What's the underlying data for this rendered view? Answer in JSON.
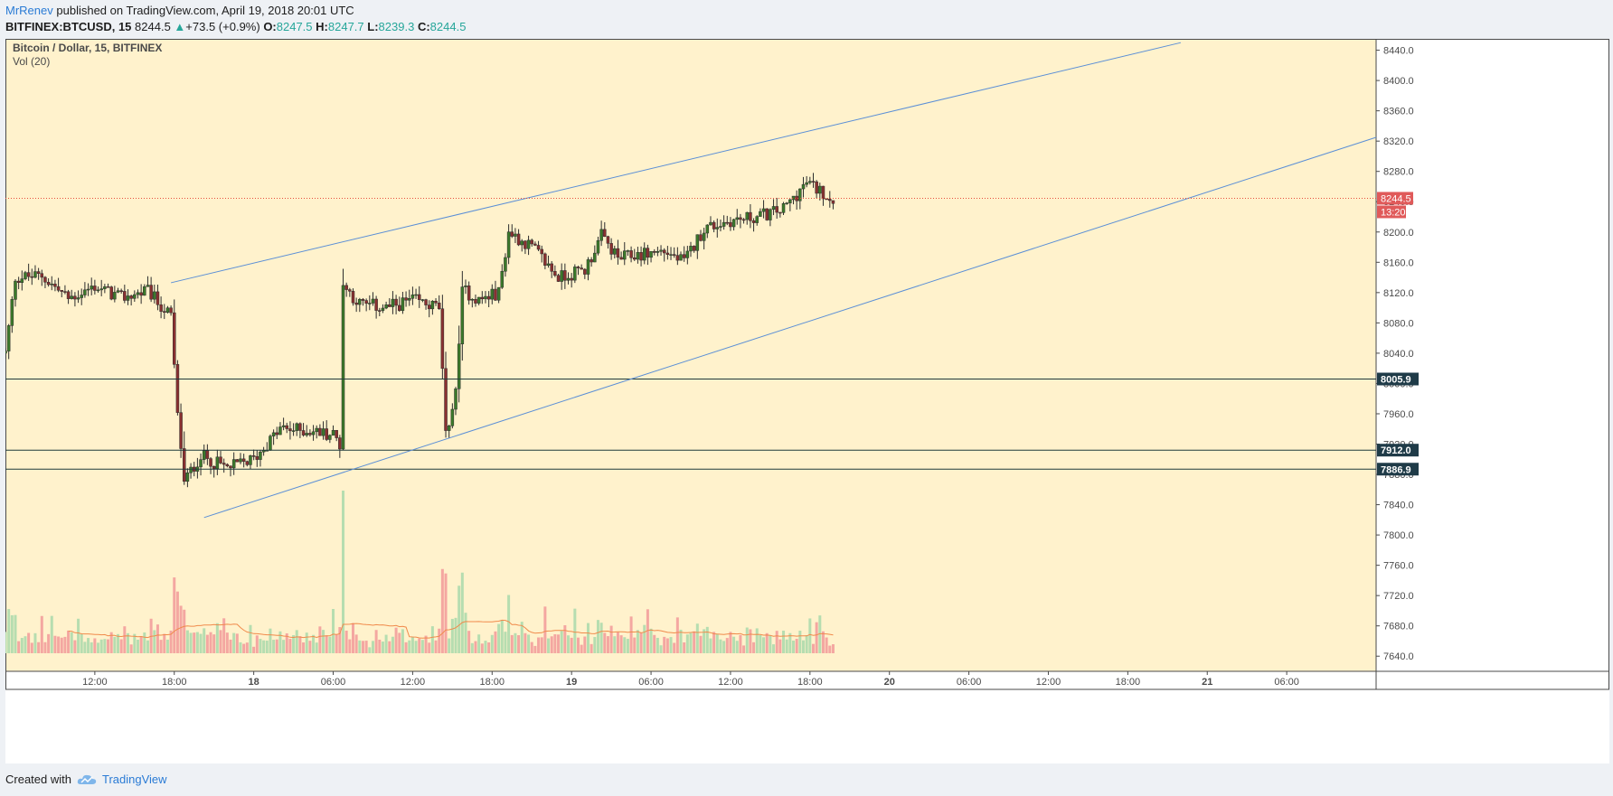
{
  "header": {
    "author": "MrRenev",
    "published": "published on TradingView.com, April 19, 2018 20:01 UTC",
    "symbol": "BITFINEX:BTCUSD, 15",
    "last": "8244.5",
    "change": "+73.5 (+0.9%)",
    "open_label": "O:",
    "open": "8247.5",
    "high_label": "H:",
    "high": "8247.7",
    "low_label": "L:",
    "low": "8239.3",
    "close_label": "C:",
    "close": "8244.5"
  },
  "legend": {
    "title": "Bitcoin / Dollar, 15, BITFINEX",
    "indicator": "Vol (20)"
  },
  "footer": {
    "created_with": "Created with",
    "brand": "TradingView"
  },
  "colors": {
    "background": "#fff2cc",
    "up": "#3b7a2a",
    "down": "#8a3030",
    "vol_up": "#b6ddb0",
    "vol_down": "#f4a7a1",
    "trendline": "#5b8fd6",
    "level_line": "#1f3b3b",
    "last_price_line": "#e74c3c",
    "volume_ma": "#f08a4b"
  },
  "chart_data": {
    "type": "candlestick",
    "interval_minutes": 15,
    "y_ticks": [
      "8440.0",
      "8400.0",
      "8360.0",
      "8320.0",
      "8280.0",
      "8240.0",
      "8200.0",
      "8160.0",
      "8120.0",
      "8080.0",
      "8040.0",
      "8000.0",
      "7960.0",
      "7920.0",
      "7880.0",
      "7840.0",
      "7800.0",
      "7760.0",
      "7720.0",
      "7680.0",
      "7640.0"
    ],
    "ylim": [
      7620,
      8455
    ],
    "x_ticks": [
      {
        "label": "12:00",
        "t": "2018-04-17T12:00"
      },
      {
        "label": "18:00",
        "t": "2018-04-17T18:00"
      },
      {
        "label": "18",
        "t": "2018-04-18T00:00"
      },
      {
        "label": "06:00",
        "t": "2018-04-18T06:00"
      },
      {
        "label": "12:00",
        "t": "2018-04-18T12:00"
      },
      {
        "label": "18:00",
        "t": "2018-04-18T18:00"
      },
      {
        "label": "19",
        "t": "2018-04-19T00:00"
      },
      {
        "label": "06:00",
        "t": "2018-04-19T06:00"
      },
      {
        "label": "12:00",
        "t": "2018-04-19T12:00"
      },
      {
        "label": "18:00",
        "t": "2018-04-19T18:00"
      },
      {
        "label": "20",
        "t": "2018-04-20T00:00"
      },
      {
        "label": "06:00",
        "t": "2018-04-20T06:00"
      },
      {
        "label": "12:00",
        "t": "2018-04-20T12:00"
      },
      {
        "label": "18:00",
        "t": "2018-04-20T18:00"
      },
      {
        "label": "21",
        "t": "2018-04-21T00:00"
      },
      {
        "label": "06:00",
        "t": "2018-04-21T06:00"
      }
    ],
    "xlim": [
      "2018-04-17T05:15",
      "2018-04-21T12:45"
    ],
    "key_prices": [
      {
        "price": 8005.9,
        "label": "8005.9"
      },
      {
        "price": 7912.0,
        "label": "7912.0"
      },
      {
        "price": 7886.9,
        "label": "7886.9"
      }
    ],
    "last_price": {
      "price": 8244.5,
      "label": "8244.5",
      "countdown": "13:20"
    },
    "trendlines": [
      {
        "start": {
          "t": "2018-04-17T17:45",
          "price": 8133
        },
        "end": {
          "t": "2018-04-20T22:00",
          "price": 8450
        }
      },
      {
        "start": {
          "t": "2018-04-17T20:15",
          "price": 7823
        },
        "end": {
          "t": "2018-04-21T12:45",
          "price": 8325
        }
      }
    ],
    "anchors": [
      {
        "t": "2018-04-17T05:15",
        "price": 8040
      },
      {
        "t": "2018-04-17T06:00",
        "price": 8140
      },
      {
        "t": "2018-04-17T08:00",
        "price": 8142
      },
      {
        "t": "2018-04-17T10:00",
        "price": 8112
      },
      {
        "t": "2018-04-17T12:00",
        "price": 8128
      },
      {
        "t": "2018-04-17T14:00",
        "price": 8113
      },
      {
        "t": "2018-04-17T16:00",
        "price": 8122
      },
      {
        "t": "2018-04-17T17:45",
        "price": 8088
      },
      {
        "t": "2018-04-17T18:15",
        "price": 7960
      },
      {
        "t": "2018-04-17T18:45",
        "price": 7870
      },
      {
        "t": "2018-04-17T20:00",
        "price": 7905
      },
      {
        "t": "2018-04-17T22:00",
        "price": 7888
      },
      {
        "t": "2018-04-18T00:00",
        "price": 7900
      },
      {
        "t": "2018-04-18T02:00",
        "price": 7940
      },
      {
        "t": "2018-04-18T04:00",
        "price": 7938
      },
      {
        "t": "2018-04-18T06:00",
        "price": 7933
      },
      {
        "t": "2018-04-18T06:30",
        "price": 7920
      },
      {
        "t": "2018-04-18T06:45",
        "price": 8130
      },
      {
        "t": "2018-04-18T08:00",
        "price": 8105
      },
      {
        "t": "2018-04-18T10:00",
        "price": 8100
      },
      {
        "t": "2018-04-18T12:00",
        "price": 8110
      },
      {
        "t": "2018-04-18T14:00",
        "price": 8100
      },
      {
        "t": "2018-04-18T14:30",
        "price": 7935
      },
      {
        "t": "2018-04-18T15:15",
        "price": 7985
      },
      {
        "t": "2018-04-18T15:45",
        "price": 8125
      },
      {
        "t": "2018-04-18T17:00",
        "price": 8110
      },
      {
        "t": "2018-04-18T18:30",
        "price": 8120
      },
      {
        "t": "2018-04-18T19:15",
        "price": 8200
      },
      {
        "t": "2018-04-18T21:00",
        "price": 8180
      },
      {
        "t": "2018-04-18T23:00",
        "price": 8140
      },
      {
        "t": "2018-04-19T01:00",
        "price": 8150
      },
      {
        "t": "2018-04-19T02:15",
        "price": 8195
      },
      {
        "t": "2018-04-19T03:30",
        "price": 8165
      },
      {
        "t": "2018-04-19T05:00",
        "price": 8170
      },
      {
        "t": "2018-04-19T07:00",
        "price": 8175
      },
      {
        "t": "2018-04-19T08:30",
        "price": 8160
      },
      {
        "t": "2018-04-19T10:00",
        "price": 8205
      },
      {
        "t": "2018-04-19T12:00",
        "price": 8215
      },
      {
        "t": "2018-04-19T14:00",
        "price": 8220
      },
      {
        "t": "2018-04-19T16:00",
        "price": 8230
      },
      {
        "t": "2018-04-19T17:45",
        "price": 8265
      },
      {
        "t": "2018-04-19T19:45",
        "price": 8244
      }
    ],
    "volume_ylim": [
      0,
      300
    ]
  }
}
